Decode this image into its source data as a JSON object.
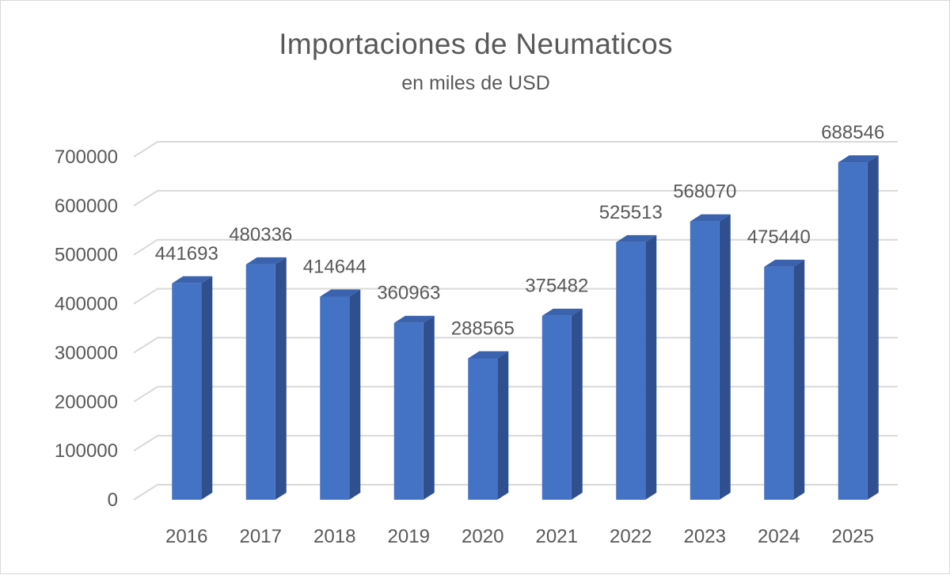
{
  "chart_data": {
    "type": "bar",
    "title": "Importaciones de Neumaticos",
    "subtitle": "en miles de USD",
    "categories": [
      "2016",
      "2017",
      "2018",
      "2019",
      "2020",
      "2021",
      "2022",
      "2023",
      "2024",
      "2025"
    ],
    "values": [
      441693,
      480336,
      414644,
      360963,
      288565,
      375482,
      525513,
      568070,
      475440,
      688546
    ],
    "data_labels": [
      "441693",
      "480336",
      "414644",
      "360963",
      "288565",
      "375482",
      "525513",
      "568070",
      "475440",
      "688546"
    ],
    "ylim": [
      0,
      700000
    ],
    "yticks": [
      0,
      100000,
      200000,
      300000,
      400000,
      500000,
      600000,
      700000
    ],
    "ytick_labels": [
      "0",
      "100000",
      "200000",
      "300000",
      "400000",
      "500000",
      "600000",
      "700000"
    ],
    "grid": true,
    "legend": "none",
    "style": "3d-column",
    "colors": {
      "bar_front": "#4472c4",
      "bar_side": "#2f4f8f",
      "bar_top": "#3a62ad",
      "gridline": "#d9d9d9",
      "text": "#595959"
    }
  }
}
